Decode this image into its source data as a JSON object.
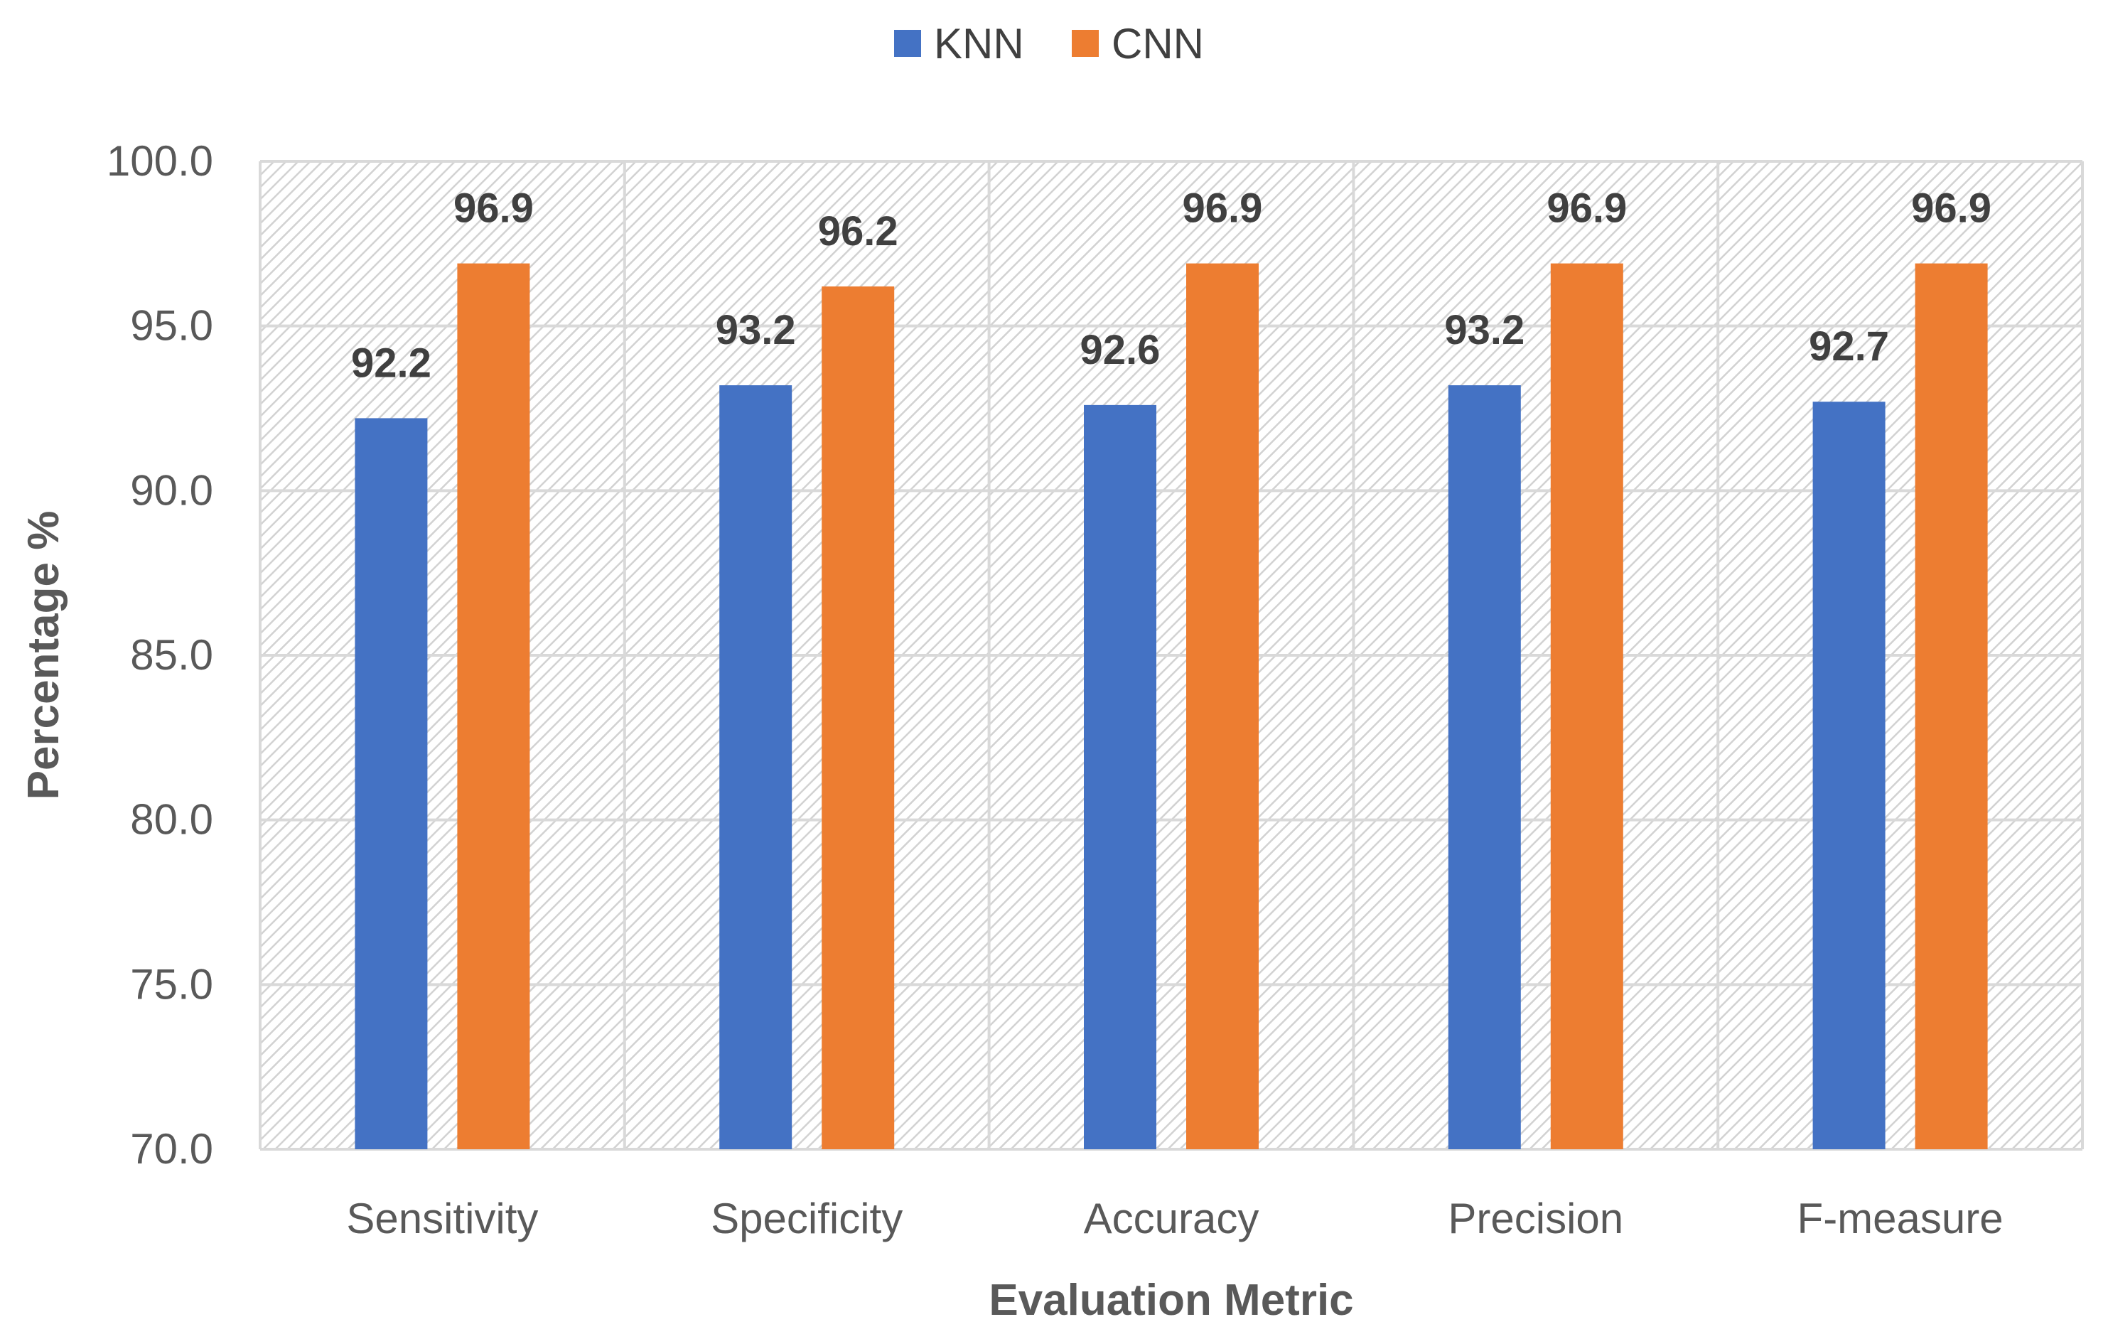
{
  "chart_data": {
    "type": "bar",
    "title": "",
    "xlabel": "Evaluation Metric",
    "ylabel": "Percentage %",
    "ylim": [
      70.0,
      100.0
    ],
    "yticks": [
      "70.0",
      "75.0",
      "80.0",
      "85.0",
      "90.0",
      "95.0",
      "100.0"
    ],
    "ytick_values": [
      70,
      75,
      80,
      85,
      90,
      95,
      100
    ],
    "categories": [
      "Sensitivity",
      "Specificity",
      "Accuracy",
      "Precision",
      "F-measure"
    ],
    "series": [
      {
        "name": "KNN",
        "color": "#4472C4",
        "values": [
          92.2,
          93.2,
          92.6,
          93.2,
          92.7
        ],
        "labels": [
          "92.2",
          "93.2",
          "92.6",
          "93.2",
          "92.7"
        ]
      },
      {
        "name": "CNN",
        "color": "#ED7D31",
        "values": [
          96.9,
          96.2,
          96.9,
          96.9,
          96.9
        ],
        "labels": [
          "96.9",
          "96.2",
          "96.9",
          "96.9",
          "96.9"
        ]
      }
    ],
    "legend_position": "top",
    "grid": true,
    "plot_background": "diagonal-hatch"
  }
}
